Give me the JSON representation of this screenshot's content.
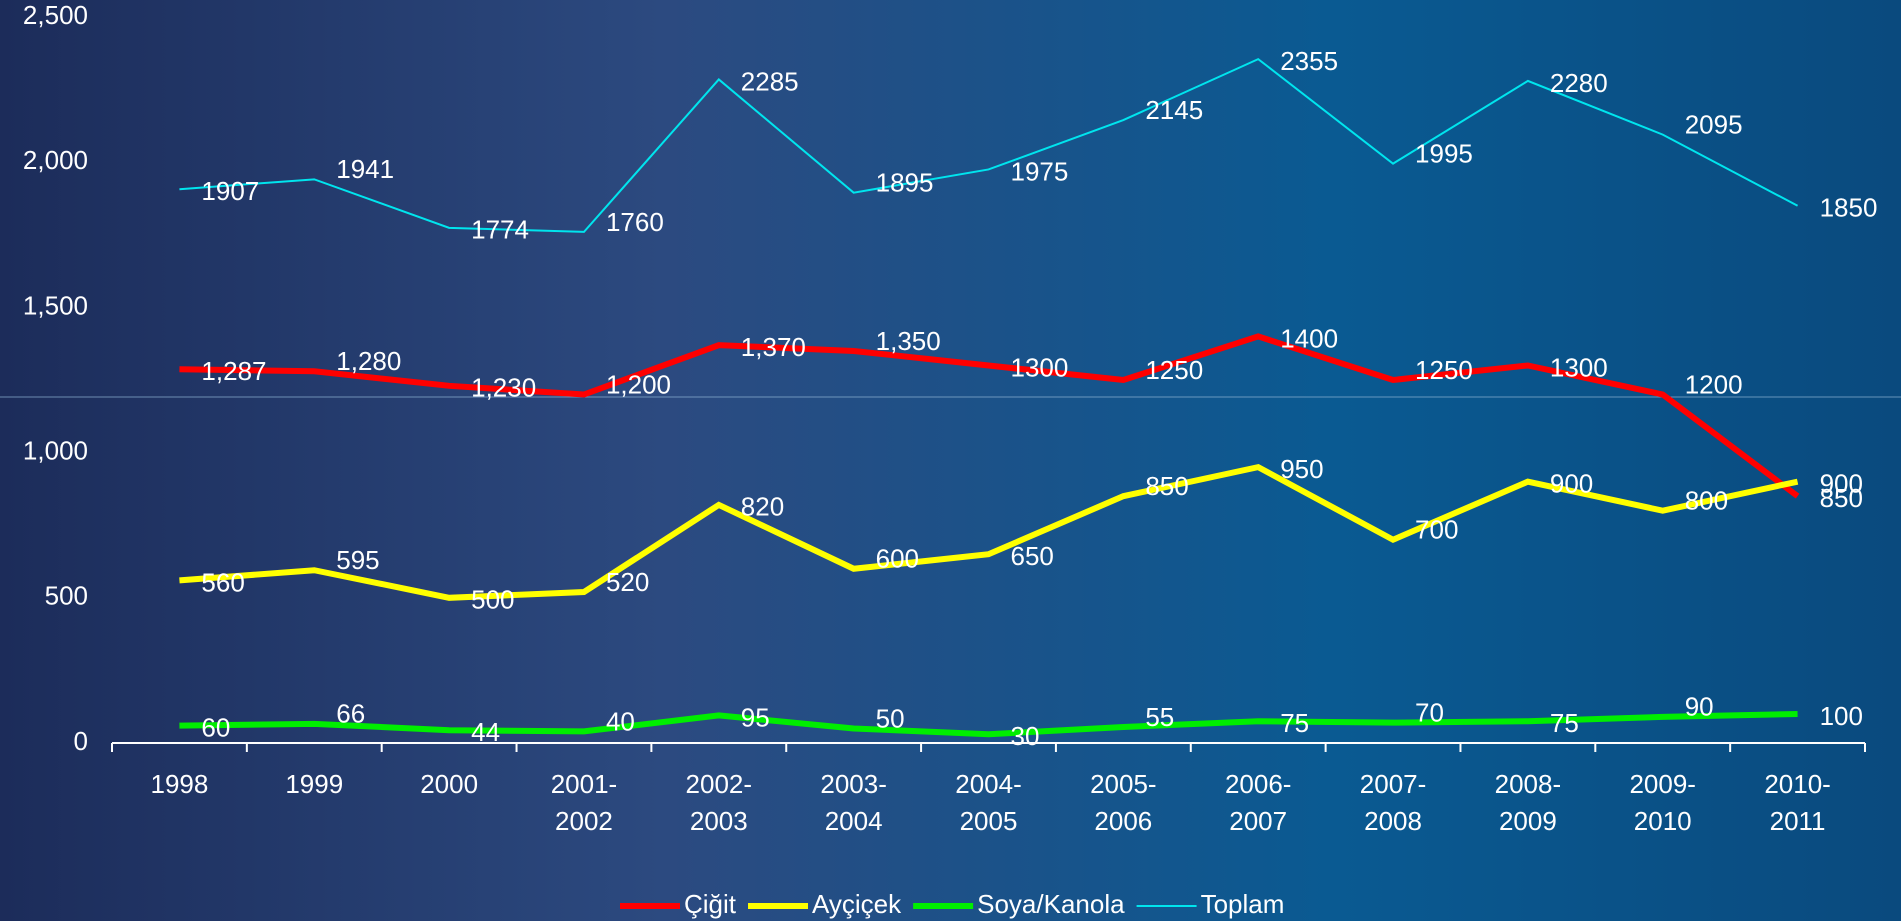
{
  "chart_data": {
    "type": "line",
    "categories": [
      "1998",
      "1999",
      "2000",
      "2001-2002",
      "2002-2003",
      "2003-2004",
      "2004-2005",
      "2005-2006",
      "2006-2007",
      "2007-2008",
      "2008-2009",
      "2009-2010",
      "2010-2011"
    ],
    "series": [
      {
        "name": "Çiğit",
        "color": "#ff0000",
        "values": [
          1287,
          1280,
          1230,
          1200,
          1370,
          1350,
          1300,
          1250,
          1400,
          1250,
          1300,
          1200,
          850
        ],
        "value_labels": [
          "1,287",
          "1,280",
          "1,230",
          "1,200",
          "1,370",
          "1,350",
          "1300",
          "1250",
          "1400",
          "1250",
          "1300",
          "1200",
          "850"
        ]
      },
      {
        "name": "Ayçiçek",
        "color": "#ffff00",
        "values": [
          560,
          595,
          500,
          520,
          820,
          600,
          650,
          850,
          950,
          700,
          900,
          800,
          900
        ]
      },
      {
        "name": "Soya/Kanola",
        "color": "#00ee00",
        "values": [
          60,
          66,
          44,
          40,
          95,
          50,
          30,
          55,
          75,
          70,
          75,
          90,
          100
        ]
      },
      {
        "name": "Toplam",
        "color": "#00e5ee",
        "values": [
          1907,
          1941,
          1774,
          1760,
          2285,
          1895,
          1975,
          2145,
          2355,
          1995,
          2280,
          2095,
          1850
        ]
      }
    ],
    "ylim": [
      0,
      2500
    ],
    "yticks": [
      0,
      500,
      {
        "value": 1000,
        "label": "1,000"
      },
      {
        "value": 1500,
        "label": "1,500"
      },
      {
        "value": 2000,
        "label": "2,000"
      },
      {
        "value": 2500,
        "label": "2,500"
      }
    ],
    "legend": "bottom"
  }
}
